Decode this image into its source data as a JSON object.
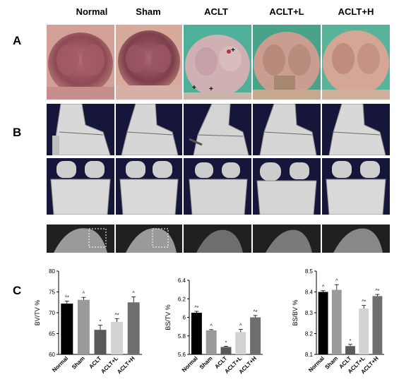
{
  "columns": [
    "Normal",
    "Sham",
    "ACLT",
    "ACLT+L",
    "ACLT+H"
  ],
  "panels": {
    "a": "A",
    "b": "B",
    "c": "C"
  },
  "chart_data": [
    {
      "type": "bar",
      "ylabel": "BV/TV %",
      "ylim": [
        60,
        80
      ],
      "yticks": [
        60,
        65,
        70,
        75,
        80
      ],
      "categories": [
        "Normal",
        "Sham",
        "ACLT",
        "ACLT+L",
        "ACLT+H"
      ],
      "values": [
        72.2,
        73.1,
        65.9,
        67.8,
        72.5
      ],
      "errors": [
        0.6,
        0.6,
        1.1,
        0.8,
        1.3
      ],
      "annotations": [
        "^*",
        "^",
        "*",
        "^*",
        "^"
      ],
      "colors": [
        "#000000",
        "#9a9a9a",
        "#595959",
        "#d2d2d2",
        "#6e6e6e"
      ]
    },
    {
      "type": "bar",
      "ylabel": "BS/TV %",
      "ylim": [
        5.6,
        6.4
      ],
      "yticks": [
        5.6,
        5.8,
        6.0,
        6.2,
        6.4
      ],
      "categories": [
        "Normal",
        "Sham",
        "ACLT",
        "ACLT+L",
        "ACLT+H"
      ],
      "values": [
        6.05,
        5.86,
        5.68,
        5.84,
        6.0
      ],
      "errors": [
        0.015,
        0.008,
        0.008,
        0.03,
        0.02
      ],
      "annotations": [
        "^*",
        "^",
        "*",
        "^",
        "^*"
      ],
      "colors": [
        "#000000",
        "#9a9a9a",
        "#595959",
        "#d2d2d2",
        "#6e6e6e"
      ]
    },
    {
      "type": "bar",
      "ylabel": "BS/BV %",
      "ylim": [
        8.1,
        8.5
      ],
      "yticks": [
        8.1,
        8.2,
        8.3,
        8.4,
        8.5
      ],
      "categories": [
        "Normal",
        "Sham",
        "ACLT",
        "ACLT+L",
        "ACLT+H"
      ],
      "values": [
        8.4,
        8.41,
        8.14,
        8.32,
        8.38
      ],
      "errors": [
        0.006,
        0.025,
        0.008,
        0.015,
        0.008
      ],
      "annotations": [
        "^",
        "^",
        "*",
        "^*",
        "^*"
      ],
      "colors": [
        "#000000",
        "#9a9a9a",
        "#595959",
        "#d2d2d2",
        "#6e6e6e"
      ]
    }
  ]
}
